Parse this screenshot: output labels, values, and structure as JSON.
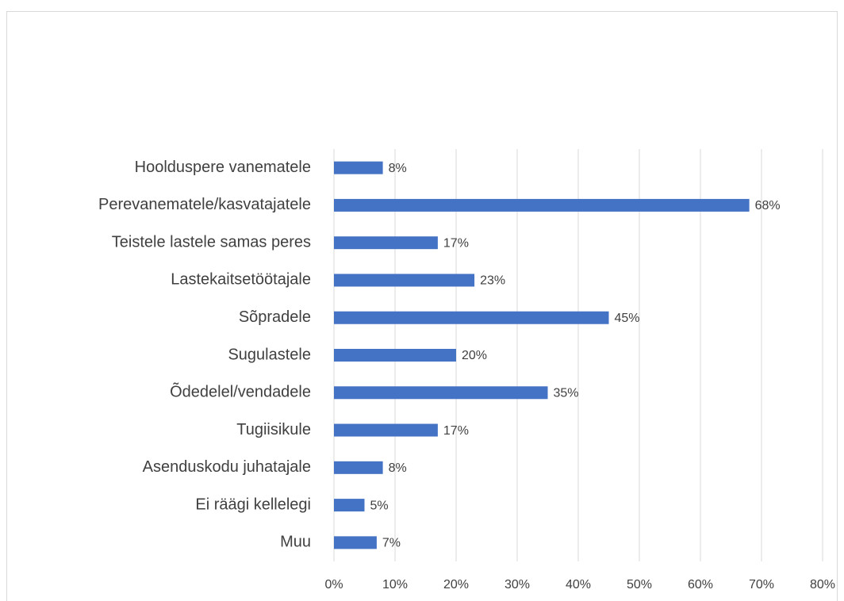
{
  "chart_data": {
    "type": "bar",
    "orientation": "horizontal",
    "categories": [
      "Hoolduspere vanematele",
      "Perevanematele/kasvatajatele",
      "Teistele lastele samas peres",
      "Lastekaitsetöötajale",
      "Sõpradele",
      "Sugulastele",
      "Õdedelel/vendadele",
      "Tugiisikule",
      "Asenduskodu juhatajale",
      "Ei räägi kellelegi",
      "Muu"
    ],
    "values": [
      8,
      68,
      17,
      23,
      45,
      20,
      35,
      17,
      8,
      5,
      7
    ],
    "value_labels": [
      "8%",
      "68%",
      "17%",
      "23%",
      "45%",
      "20%",
      "35%",
      "17%",
      "8%",
      "5%",
      "7%"
    ],
    "color": "#4472c4",
    "xlim": [
      0,
      80
    ],
    "xticks": [
      {
        "value": 0,
        "label": "0%"
      },
      {
        "value": 10,
        "label": "10%"
      },
      {
        "value": 20,
        "label": "20%"
      },
      {
        "value": 30,
        "label": "30%"
      },
      {
        "value": 40,
        "label": "40%"
      },
      {
        "value": 50,
        "label": "50%"
      },
      {
        "value": 60,
        "label": "60%"
      },
      {
        "value": 70,
        "label": "70%"
      },
      {
        "value": 80,
        "label": "80%"
      }
    ],
    "grid": true
  }
}
